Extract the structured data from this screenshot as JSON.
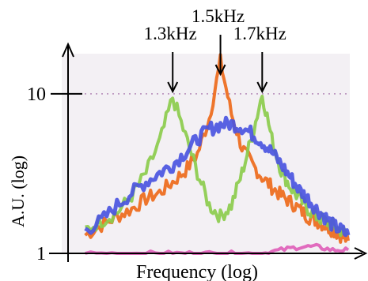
{
  "chart_data": {
    "type": "line",
    "xlabel": "Frequency (log)",
    "ylabel": "A.U. (log)",
    "x_scale": "log",
    "y_scale": "log",
    "y_ticks": [
      {
        "value": 1,
        "label": "1"
      },
      {
        "value": 10,
        "label": "10"
      }
    ],
    "ylim": [
      1,
      20
    ],
    "annotations": [
      {
        "label": "1.3kHz",
        "x": 1.3
      },
      {
        "label": "1.5kHz",
        "x": 1.5
      },
      {
        "label": "1.7kHz",
        "x": 1.7
      }
    ],
    "xlim": [
      0.95,
      2.2
    ],
    "grid": "dashed line at y=10",
    "series": [
      {
        "color": "#ee6a1a",
        "x": [
          1.0,
          1.05,
          1.1,
          1.15,
          1.2,
          1.25,
          1.3,
          1.35,
          1.4,
          1.45,
          1.5,
          1.55,
          1.6,
          1.65,
          1.7,
          1.75,
          1.8,
          1.85,
          1.9,
          1.95,
          2.0,
          2.05,
          2.1,
          2.15,
          2.2
        ],
        "y": [
          1.3,
          1.5,
          1.7,
          1.9,
          2.2,
          2.4,
          2.8,
          3.3,
          4.2,
          7.0,
          16.0,
          7.5,
          4.6,
          3.6,
          3.0,
          2.6,
          2.3,
          2.1,
          1.9,
          1.7,
          1.6,
          1.5,
          1.4,
          1.3,
          1.2
        ]
      },
      {
        "color": "#8ccc4c",
        "x": [
          1.0,
          1.05,
          1.1,
          1.15,
          1.2,
          1.25,
          1.3,
          1.35,
          1.4,
          1.45,
          1.5,
          1.55,
          1.6,
          1.65,
          1.7,
          1.75,
          1.8,
          1.85,
          1.9,
          1.95,
          2.0,
          2.05,
          2.1,
          2.15,
          2.2
        ],
        "y": [
          1.4,
          1.6,
          1.8,
          2.3,
          3.2,
          5.0,
          9.5,
          5.5,
          3.2,
          2.0,
          1.7,
          2.0,
          3.2,
          5.5,
          10.0,
          5.2,
          3.3,
          2.6,
          2.2,
          1.9,
          1.7,
          1.6,
          1.5,
          1.4,
          1.3
        ]
      },
      {
        "color": "#4b55e0",
        "x": [
          1.0,
          1.05,
          1.1,
          1.15,
          1.2,
          1.25,
          1.3,
          1.35,
          1.4,
          1.45,
          1.5,
          1.55,
          1.6,
          1.65,
          1.7,
          1.75,
          1.8,
          1.85,
          1.9,
          1.95,
          2.0,
          2.05,
          2.1,
          2.15,
          2.2
        ],
        "y": [
          1.4,
          1.6,
          2.0,
          2.4,
          2.8,
          3.2,
          3.6,
          4.3,
          5.2,
          6.0,
          6.4,
          6.5,
          6.2,
          5.6,
          5.0,
          4.3,
          3.6,
          3.0,
          2.5,
          2.2,
          1.9,
          1.7,
          1.5,
          1.4,
          1.3
        ]
      },
      {
        "color": "#e060b8",
        "x": [
          1.0,
          1.1,
          1.2,
          1.3,
          1.4,
          1.5,
          1.6,
          1.7,
          1.8,
          1.9,
          2.0,
          2.1,
          2.2
        ],
        "y": [
          1.0,
          1.0,
          1.0,
          1.0,
          1.0,
          1.0,
          1.0,
          1.0,
          1.05,
          1.1,
          1.1,
          1.05,
          1.05
        ]
      }
    ]
  }
}
